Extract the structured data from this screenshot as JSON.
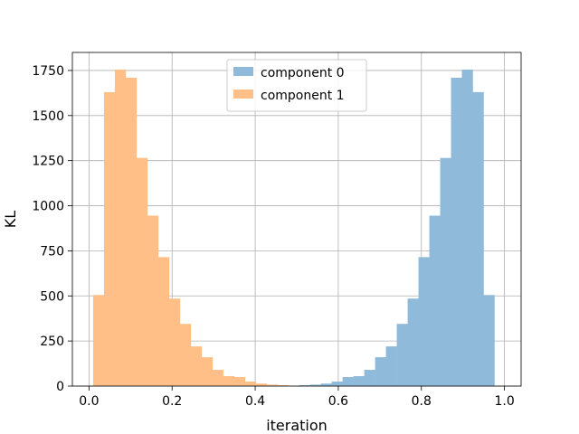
{
  "chart_data": {
    "type": "histogram",
    "xlabel": "iteration",
    "ylabel": "KL",
    "xlim": [
      -0.04,
      1.04
    ],
    "ylim": [
      0,
      1850
    ],
    "xticks": [
      0.0,
      0.2,
      0.4,
      0.6,
      0.8,
      1.0
    ],
    "xtick_labels": [
      "0.0",
      "0.2",
      "0.4",
      "0.6",
      "0.8",
      "1.0"
    ],
    "yticks": [
      0,
      250,
      500,
      750,
      1000,
      1250,
      1500,
      1750
    ],
    "ytick_labels": [
      "0",
      "250",
      "500",
      "750",
      "1000",
      "1250",
      "1500",
      "1750"
    ],
    "grid": true,
    "legend_position": "upper center",
    "bin_edges": [
      0.01,
      0.0361,
      0.0622,
      0.0883,
      0.1144,
      0.1405,
      0.1666,
      0.1927,
      0.2188,
      0.2449,
      0.271,
      0.2971,
      0.3232,
      0.3493,
      0.3754,
      0.4015,
      0.4276,
      0.4537,
      0.4798,
      0.5059,
      0.532,
      0.5581,
      0.5842,
      0.6103,
      0.6364,
      0.6625,
      0.6886,
      0.7147,
      0.7408,
      0.7669,
      0.793,
      0.8191,
      0.8452,
      0.8713,
      0.8974,
      0.9235,
      0.9496,
      0.9757
    ],
    "series": [
      {
        "name": "component 0",
        "color": "#8fbad9",
        "values": [
          0,
          0,
          0,
          0,
          0,
          0,
          0,
          0,
          0,
          0,
          0,
          0,
          0,
          0,
          0,
          0,
          0,
          0,
          2,
          5,
          8,
          14,
          25,
          50,
          55,
          90,
          160,
          220,
          345,
          485,
          715,
          945,
          1265,
          1710,
          1755,
          1630,
          505
        ]
      },
      {
        "name": "component 1",
        "color": "#ffbf86",
        "values": [
          505,
          1630,
          1755,
          1710,
          1265,
          945,
          715,
          485,
          345,
          220,
          160,
          90,
          55,
          50,
          25,
          14,
          8,
          5,
          2,
          0,
          0,
          0,
          0,
          0,
          0,
          0,
          0,
          0,
          0,
          0,
          0,
          0,
          0,
          0,
          0,
          0,
          0
        ]
      }
    ]
  }
}
